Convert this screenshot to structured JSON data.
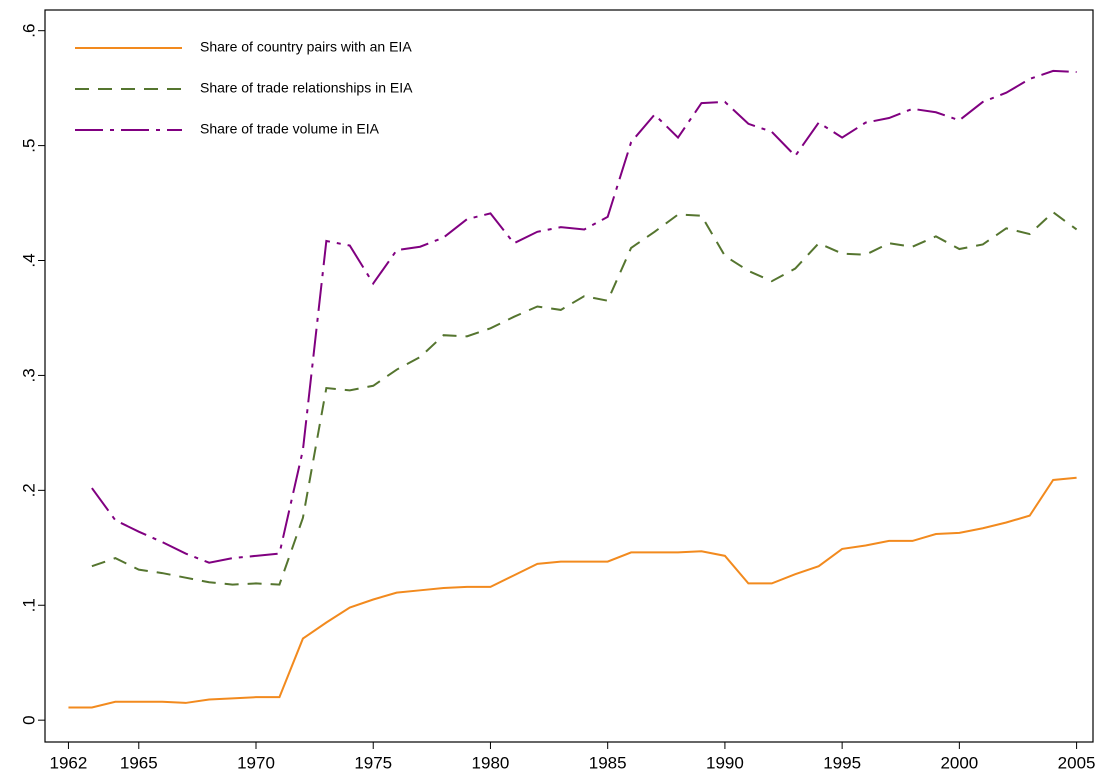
{
  "chart_data": {
    "type": "line",
    "x": [
      1962,
      1963,
      1964,
      1965,
      1966,
      1967,
      1968,
      1969,
      1970,
      1971,
      1972,
      1973,
      1974,
      1975,
      1976,
      1977,
      1978,
      1979,
      1980,
      1981,
      1982,
      1983,
      1984,
      1985,
      1986,
      1987,
      1988,
      1989,
      1990,
      1991,
      1992,
      1993,
      1994,
      1995,
      1996,
      1997,
      1998,
      1999,
      2000,
      2001,
      2002,
      2003,
      2004,
      2005
    ],
    "series": [
      {
        "name": "Share of country pairs with an EIA",
        "color": "#f28a1e",
        "dash": "solid",
        "values": [
          0.011,
          0.011,
          0.016,
          0.016,
          0.016,
          0.015,
          0.018,
          0.019,
          0.02,
          0.02,
          0.071,
          0.085,
          0.098,
          0.105,
          0.111,
          0.113,
          0.115,
          0.116,
          0.116,
          0.126,
          0.136,
          0.138,
          0.138,
          0.138,
          0.146,
          0.146,
          0.146,
          0.147,
          0.143,
          0.119,
          0.119,
          0.127,
          0.134,
          0.149,
          0.152,
          0.156,
          0.156,
          0.162,
          0.163,
          0.167,
          0.172,
          0.178,
          0.209,
          0.211
        ]
      },
      {
        "name": "Share of trade relationships in EIA",
        "color": "#55752f",
        "dash": "dash",
        "values": [
          null,
          0.134,
          0.141,
          0.131,
          0.128,
          0.124,
          0.12,
          0.118,
          0.119,
          0.118,
          0.176,
          0.289,
          0.287,
          0.291,
          0.305,
          0.316,
          0.335,
          0.334,
          0.341,
          0.351,
          0.36,
          0.357,
          0.369,
          0.365,
          0.411,
          0.425,
          0.44,
          0.439,
          0.404,
          0.391,
          0.382,
          0.393,
          0.415,
          0.406,
          0.405,
          0.415,
          0.412,
          0.421,
          0.41,
          0.414,
          0.428,
          0.423,
          0.442,
          0.427
        ]
      },
      {
        "name": "Share of trade volume in EIA",
        "color": "#800080",
        "dash": "longdash",
        "values": [
          null,
          0.202,
          0.174,
          0.164,
          0.155,
          0.145,
          0.137,
          0.141,
          0.143,
          0.145,
          0.235,
          0.417,
          0.413,
          0.38,
          0.409,
          0.412,
          0.42,
          0.436,
          0.441,
          0.415,
          0.425,
          0.429,
          0.427,
          0.438,
          0.503,
          0.527,
          0.507,
          0.537,
          0.538,
          0.519,
          0.512,
          0.491,
          0.52,
          0.507,
          0.52,
          0.524,
          0.532,
          0.529,
          0.522,
          0.538,
          0.546,
          0.558,
          0.565,
          0.564
        ]
      }
    ],
    "xlim": [
      1961,
      2005.7
    ],
    "ylim": [
      -0.019,
      0.618
    ],
    "xticks": [
      1962,
      1965,
      1970,
      1975,
      1980,
      1985,
      1990,
      1995,
      2000,
      2005
    ],
    "yticks": [
      0,
      {
        "value": 0.1,
        "label": ".1"
      },
      {
        "value": 0.2,
        "label": ".2"
      },
      {
        "value": 0.3,
        "label": ".3"
      },
      {
        "value": 0.4,
        "label": ".4"
      },
      {
        "value": 0.5,
        "label": ".5"
      },
      {
        "value": 0.6,
        "label": ".6"
      }
    ],
    "grid": false,
    "legend": "top-left"
  }
}
